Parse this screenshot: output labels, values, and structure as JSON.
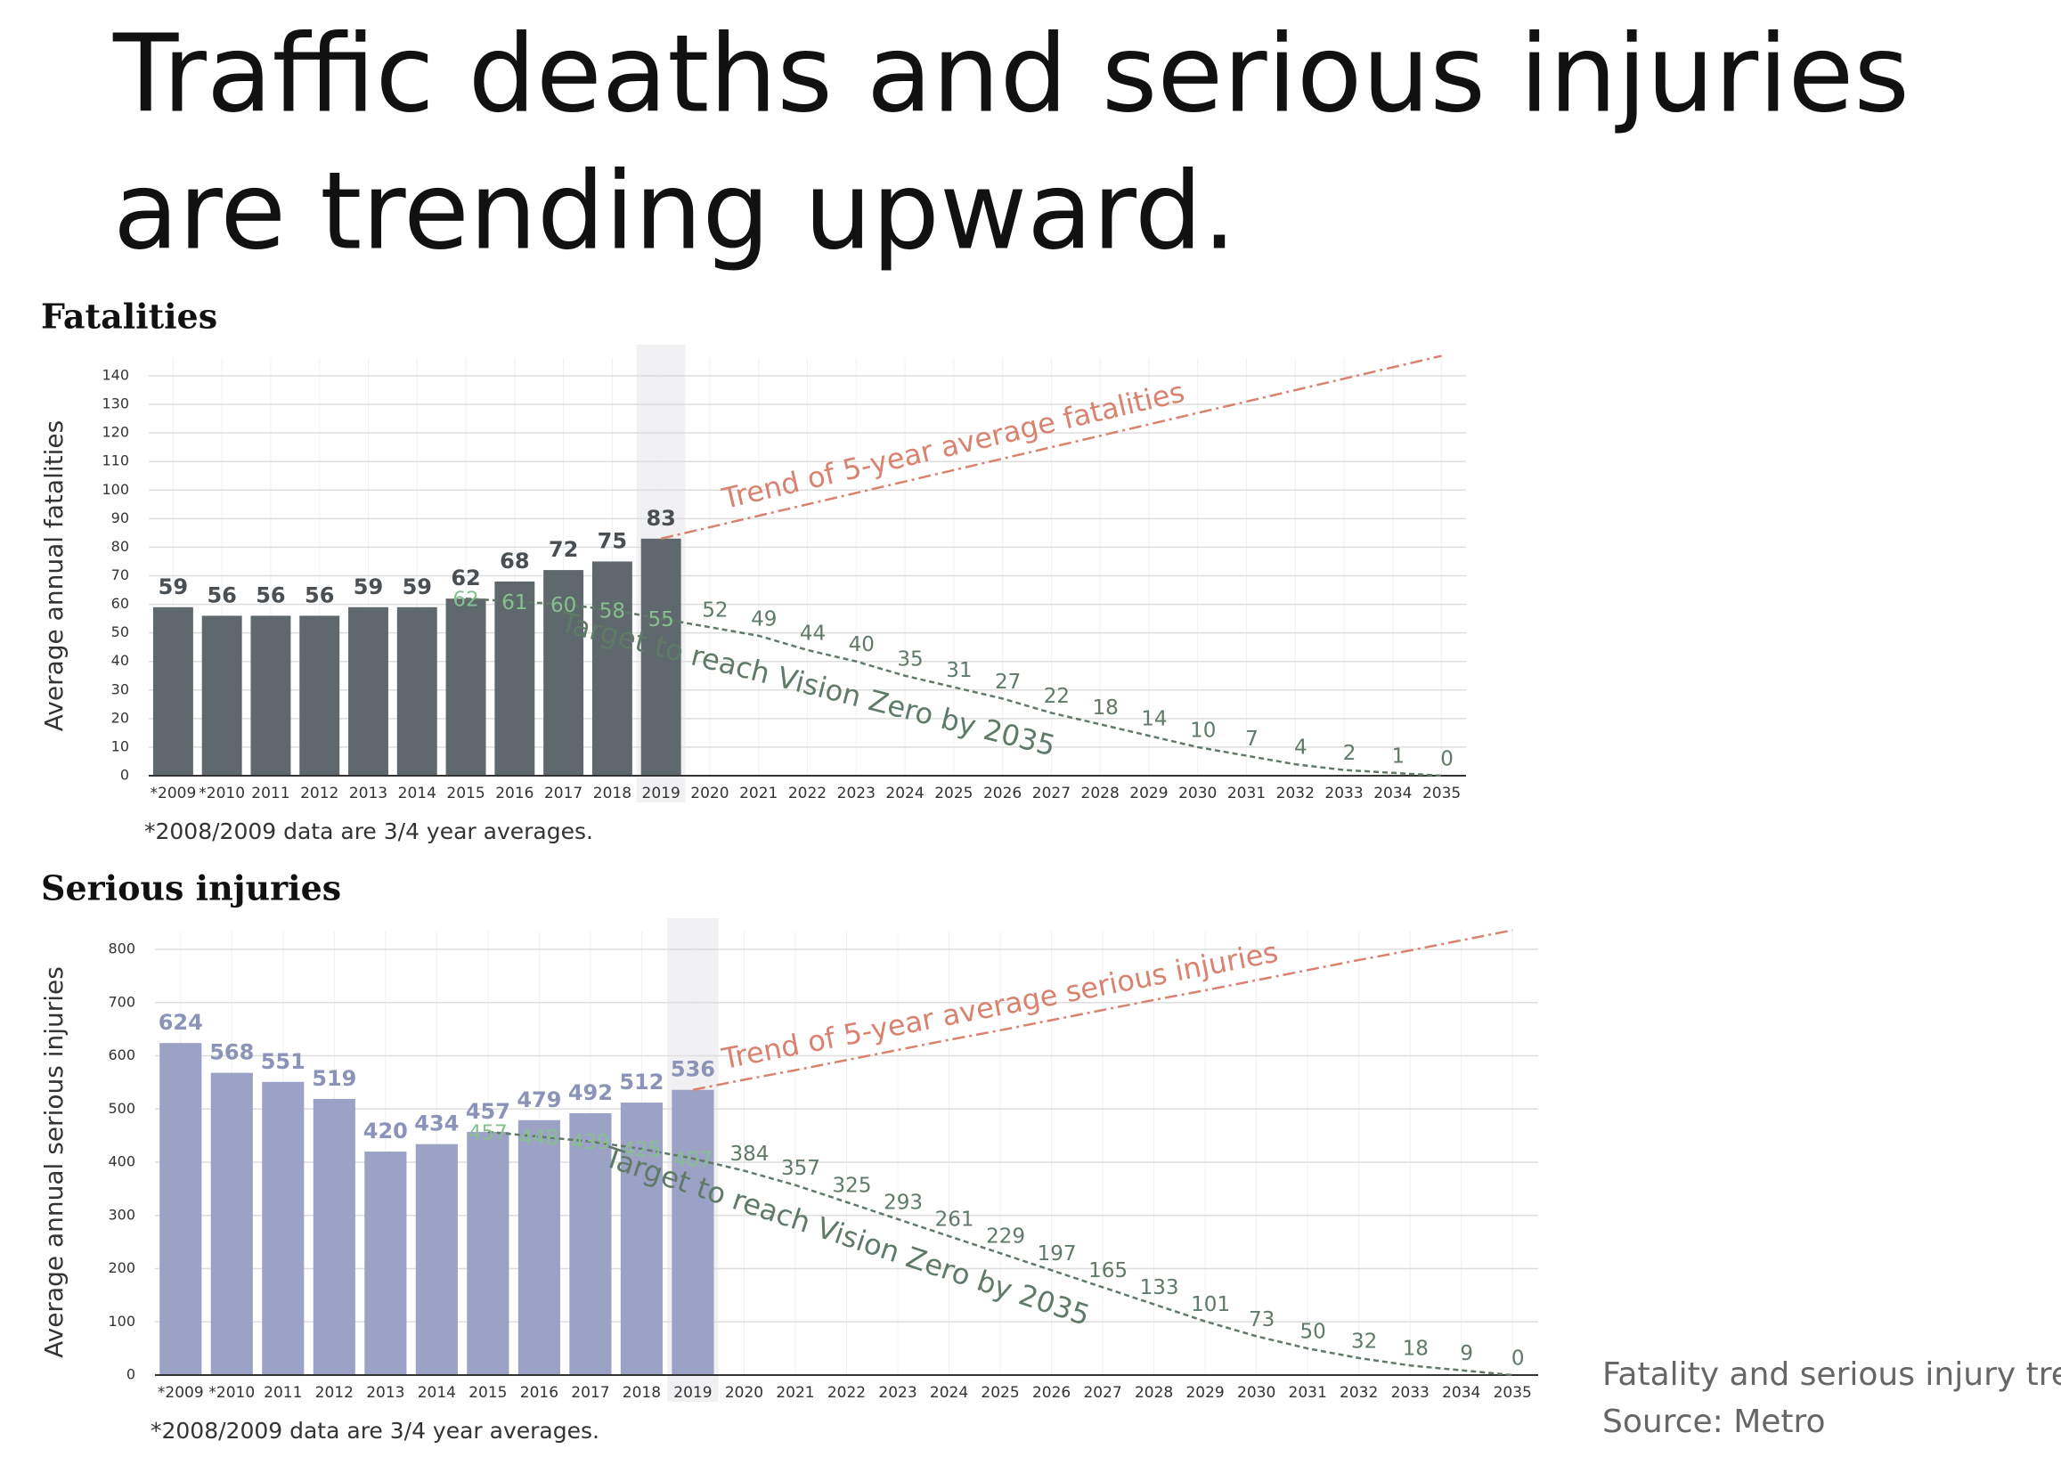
{
  "title": "Traffic deaths and serious injuries are trending upward.",
  "caption": [
    "Fatality and serious injury tre",
    "Source: Metro"
  ],
  "chart_data": [
    {
      "type": "bar",
      "title": "Fatalities",
      "ylabel": "Average annual fatalities",
      "note": "*2008/2009 data are 3/4 year averages.",
      "categories": [
        "*2009",
        "*2010",
        "2011",
        "2012",
        "2013",
        "2014",
        "2015",
        "2016",
        "2017",
        "2018",
        "2019",
        "2020",
        "2021",
        "2022",
        "2023",
        "2024",
        "2025",
        "2026",
        "2027",
        "2028",
        "2029",
        "2030",
        "2031",
        "2032",
        "2033",
        "2034",
        "2035"
      ],
      "values": [
        59,
        56,
        56,
        56,
        59,
        59,
        62,
        68,
        72,
        75,
        83,
        null,
        null,
        null,
        null,
        null,
        null,
        null,
        null,
        null,
        null,
        null,
        null,
        null,
        null,
        null,
        null
      ],
      "color": "#5f686d",
      "label_color": "#4a4f53",
      "series": [
        {
          "name": "Trend of 5-year average fatalities",
          "color": "#d9826f",
          "labels": false,
          "values": [
            null,
            null,
            null,
            null,
            null,
            null,
            null,
            null,
            null,
            null,
            83,
            87,
            91,
            95,
            99,
            103,
            107,
            111,
            115,
            119,
            123,
            127,
            131,
            135,
            139,
            143,
            147
          ]
        },
        {
          "name": "Target to reach Vision Zero by 2035",
          "color": "#5f7a66",
          "labels": true,
          "values": [
            null,
            null,
            null,
            null,
            null,
            null,
            62,
            61,
            60,
            58,
            55,
            52,
            49,
            44,
            40,
            35,
            31,
            27,
            22,
            18,
            14,
            10,
            7,
            4,
            2,
            1,
            0
          ]
        }
      ],
      "ylim": [
        0,
        140
      ],
      "yticks": [
        0,
        10,
        20,
        30,
        40,
        50,
        60,
        70,
        80,
        90,
        100,
        110,
        120,
        130,
        140
      ],
      "grid": true
    },
    {
      "type": "bar",
      "title": "Serious injuries",
      "ylabel": "Average annual serious injuries",
      "note": "*2008/2009 data are 3/4 year averages.",
      "categories": [
        "*2009",
        "*2010",
        "2011",
        "2012",
        "2013",
        "2014",
        "2015",
        "2016",
        "2017",
        "2018",
        "2019",
        "2020",
        "2021",
        "2022",
        "2023",
        "2024",
        "2025",
        "2026",
        "2027",
        "2028",
        "2029",
        "2030",
        "2031",
        "2032",
        "2033",
        "2034",
        "2035"
      ],
      "values": [
        624,
        568,
        551,
        519,
        420,
        434,
        457,
        479,
        492,
        512,
        536,
        null,
        null,
        null,
        null,
        null,
        null,
        null,
        null,
        null,
        null,
        null,
        null,
        null,
        null,
        null,
        null
      ],
      "color": "#9ca2c6",
      "label_color": "#8c93b8",
      "series": [
        {
          "name": "Trend of 5-year average serious injuries",
          "color": "#d9826f",
          "labels": false,
          "values": [
            null,
            null,
            null,
            null,
            null,
            null,
            null,
            null,
            null,
            null,
            536,
            555,
            573,
            592,
            611,
            630,
            648,
            667,
            686,
            705,
            723,
            742,
            761,
            780,
            798,
            817,
            836
          ]
        },
        {
          "name": "Target to reach Vision Zero by 2035",
          "color": "#5f7a66",
          "labels": true,
          "values": [
            null,
            null,
            null,
            null,
            null,
            null,
            457,
            448,
            439,
            425,
            407,
            384,
            357,
            325,
            293,
            261,
            229,
            197,
            165,
            133,
            101,
            73,
            50,
            32,
            18,
            9,
            0
          ]
        }
      ],
      "ylim": [
        0,
        800
      ],
      "yticks": [
        0,
        100,
        200,
        300,
        400,
        500,
        600,
        700,
        800
      ],
      "grid": true
    }
  ]
}
